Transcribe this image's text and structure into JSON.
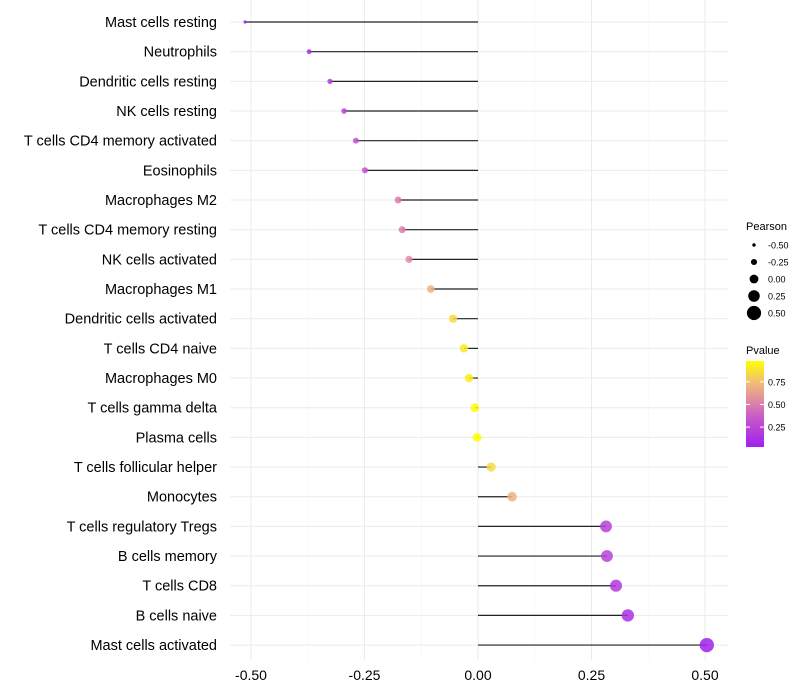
{
  "chart_data": {
    "type": "lollipop",
    "title": "",
    "xlabel": "",
    "ylabel": "",
    "xlim": [
      -0.54,
      0.54
    ],
    "x_ticks": [
      "-0.50",
      "-0.25",
      "0.00",
      "0.25",
      "0.50"
    ],
    "x_tick_values": [
      -0.5,
      -0.25,
      0,
      0.25,
      0.5
    ],
    "grid": true,
    "categories": [
      "Mast cells resting",
      "Neutrophils",
      "Dendritic cells resting",
      "NK cells resting",
      "T cells CD4 memory activated",
      "Eosinophils",
      "Macrophages M2",
      "T cells CD4 memory resting",
      "NK cells activated",
      "Macrophages M1",
      "Dendritic cells activated",
      "T cells CD4 naive",
      "Macrophages M0",
      "T cells gamma delta",
      "Plasma cells",
      "T cells follicular helper",
      "Monocytes",
      "T cells regulatory  Tregs",
      "B cells memory",
      "T cells CD8",
      "B cells naive",
      "Mast cells activated"
    ],
    "pearson": [
      -0.513,
      -0.372,
      -0.326,
      -0.295,
      -0.269,
      -0.249,
      -0.176,
      -0.167,
      -0.152,
      -0.104,
      -0.055,
      -0.031,
      -0.02,
      -0.007,
      -0.002,
      0.029,
      0.075,
      0.282,
      0.284,
      0.304,
      0.33,
      0.504
    ],
    "pvalue": [
      0.03,
      0.1,
      0.2,
      0.25,
      0.3,
      0.33,
      0.5,
      0.5,
      0.55,
      0.7,
      0.85,
      0.9,
      0.92,
      0.97,
      0.98,
      0.85,
      0.7,
      0.22,
      0.22,
      0.18,
      0.12,
      0.03
    ],
    "legend": {
      "placement": "right",
      "size_title": "Pearson",
      "size_labels": [
        "-0.50",
        "-0.25",
        "0.00",
        "0.25",
        "0.50"
      ],
      "size_values": [
        -0.5,
        -0.25,
        0,
        0.25,
        0.5
      ],
      "color_title": "Pvalue",
      "color_labels": [
        "0.75",
        "0.50",
        "0.25"
      ],
      "color_values": [
        0.75,
        0.5,
        0.25
      ],
      "color_range": [
        0.03,
        0.98
      ],
      "low_color": "#a020f0",
      "high_color": "#ffff00"
    }
  }
}
